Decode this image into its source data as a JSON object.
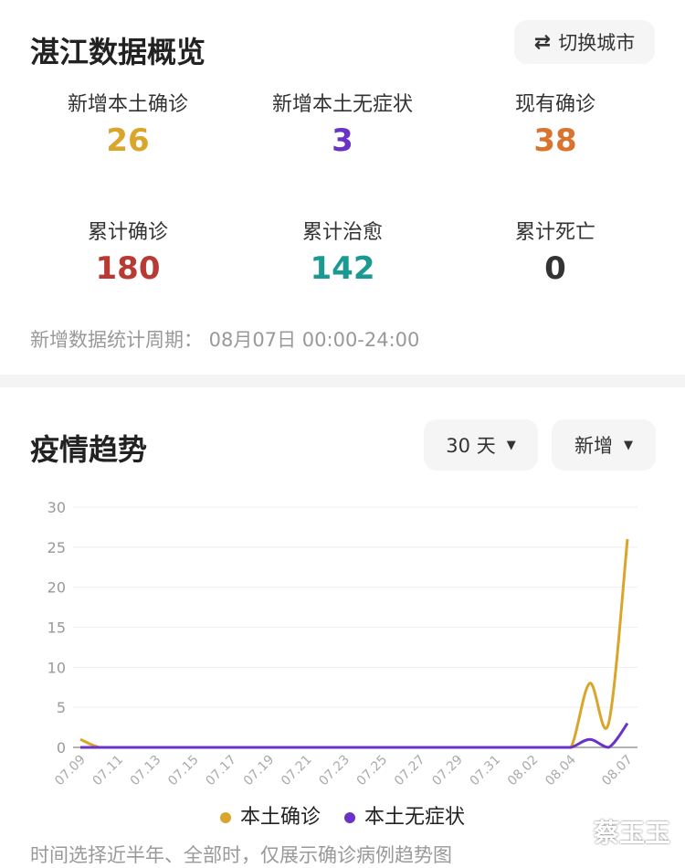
{
  "overview": {
    "title": "湛江数据概览",
    "switch_city": "切换城市",
    "switch_icon": "swap-arrows-icon",
    "stats": [
      {
        "label": "新增本土确诊",
        "value": "26",
        "color": "#d9a62b"
      },
      {
        "label": "新增本土无症状",
        "value": "3",
        "color": "#6a33c8"
      },
      {
        "label": "现有确诊",
        "value": "38",
        "color": "#d9732e"
      },
      {
        "label": "累计确诊",
        "value": "180",
        "color": "#b83a34"
      },
      {
        "label": "累计治愈",
        "value": "142",
        "color": "#1a9a93"
      },
      {
        "label": "累计死亡",
        "value": "0",
        "color": "#333333"
      }
    ],
    "period": "新增数据统计周期：  08月07日 00:00-24:00"
  },
  "trend": {
    "title": "疫情趋势",
    "range_select": "30 天",
    "type_select": "新增",
    "note": "时间选择近半年、全部时，仅展示确诊病例趋势图"
  },
  "chart_data": {
    "type": "line",
    "ylim": [
      0,
      30
    ],
    "yticks": [
      "0",
      "5",
      "10",
      "15",
      "20",
      "25",
      "30"
    ],
    "grid": true,
    "legend_position": "bottom",
    "x": [
      "07.09",
      "07.10",
      "07.11",
      "07.12",
      "07.13",
      "07.14",
      "07.15",
      "07.16",
      "07.17",
      "07.18",
      "07.19",
      "07.20",
      "07.21",
      "07.22",
      "07.23",
      "07.24",
      "07.25",
      "07.26",
      "07.27",
      "07.28",
      "07.29",
      "07.30",
      "07.31",
      "08.01",
      "08.02",
      "08.03",
      "08.04",
      "08.05",
      "08.06",
      "08.07"
    ],
    "xtick_labels": [
      "07.09",
      "07.11",
      "07.13",
      "07.15",
      "07.17",
      "07.19",
      "07.21",
      "07.23",
      "07.25",
      "07.27",
      "07.29",
      "07.31",
      "08.02",
      "08.04",
      "08.07"
    ],
    "series": [
      {
        "name": "本土确诊",
        "color": "#d9a62b",
        "values": [
          1,
          0,
          0,
          0,
          0,
          0,
          0,
          0,
          0,
          0,
          0,
          0,
          0,
          0,
          0,
          0,
          0,
          0,
          0,
          0,
          0,
          0,
          0,
          0,
          0,
          0,
          0,
          8,
          3,
          26
        ]
      },
      {
        "name": "本土无症状",
        "color": "#6a33c8",
        "values": [
          0,
          0,
          0,
          0,
          0,
          0,
          0,
          0,
          0,
          0,
          0,
          0,
          0,
          0,
          0,
          0,
          0,
          0,
          0,
          0,
          0,
          0,
          0,
          0,
          0,
          0,
          0,
          1,
          0,
          3
        ]
      }
    ]
  },
  "watermark": "蔡玉玉"
}
